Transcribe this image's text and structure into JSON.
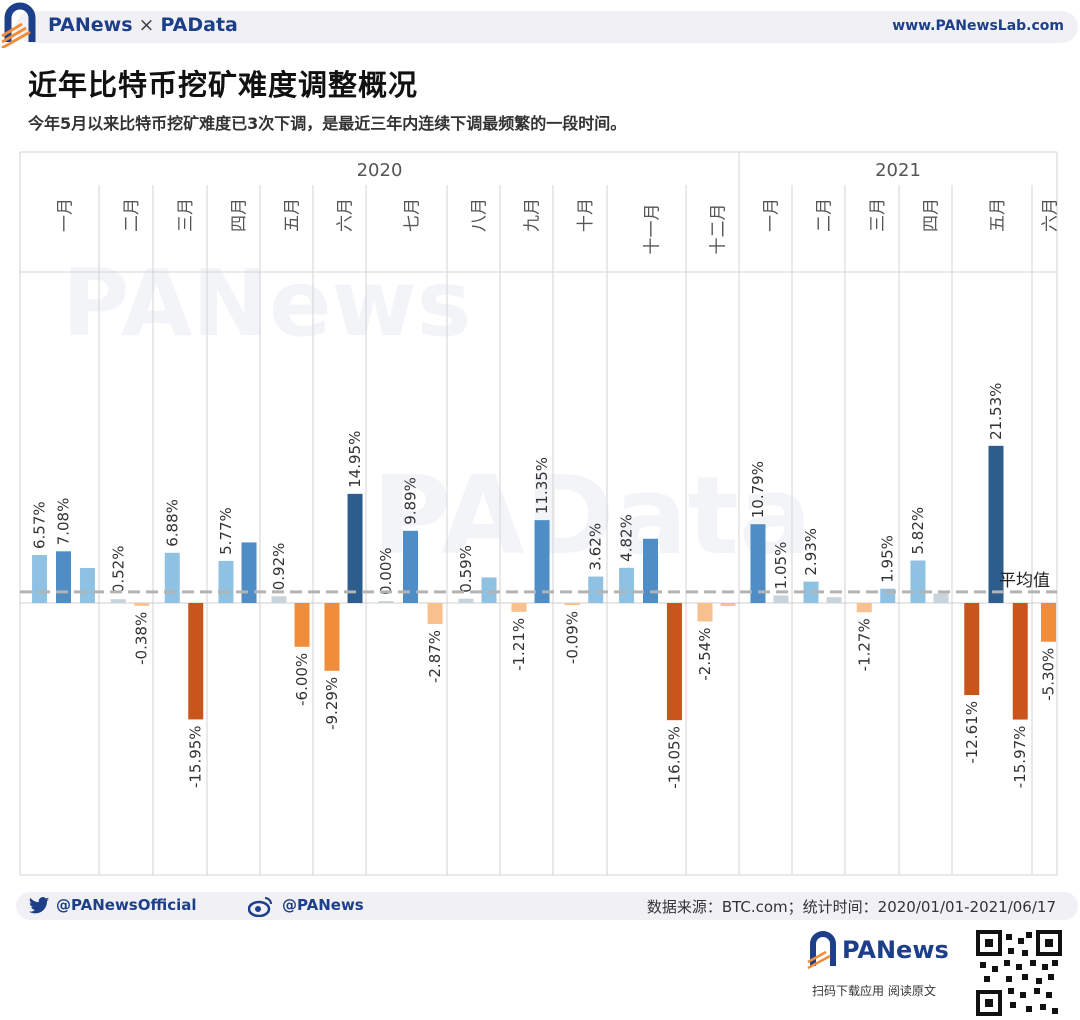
{
  "header": {
    "brand_left": "PANews",
    "brand_sep": "×",
    "brand_right": "PAData",
    "url": "www.PANewsLab.com"
  },
  "title": "近年比特币挖矿难度调整概况",
  "subtitle": "今年5月以来比特币挖矿难度已3次下调，是最近三年内连续下调最频繁的一段时间。",
  "watermarks": [
    "PANews",
    "PAData"
  ],
  "colors": {
    "pos_light": "#8fc1e3",
    "pos_mid": "#4f8dc6",
    "pos_dark": "#2c5d8c",
    "neg_light": "#f7c08c",
    "neg_mid": "#f18d3a",
    "neg_dark": "#c9551d",
    "near_zero": "#c9d3dc",
    "avg_line": "#b3b3b3"
  },
  "chart_data": {
    "type": "bar",
    "average_label": "平均值",
    "average_value": 0.9,
    "years": [
      {
        "label": "2020",
        "months": 12
      },
      {
        "label": "2021",
        "months": 6
      }
    ],
    "months": [
      {
        "label": "一月",
        "values": [
          6.57,
          7.08,
          4.8
        ]
      },
      {
        "label": "二月",
        "values": [
          0.52,
          -0.38
        ]
      },
      {
        "label": "三月",
        "values": [
          6.88,
          -15.95
        ]
      },
      {
        "label": "四月",
        "values": [
          5.77,
          8.3
        ]
      },
      {
        "label": "五月",
        "values": [
          0.92,
          -6.0
        ]
      },
      {
        "label": "六月",
        "values": [
          -9.29,
          14.95
        ]
      },
      {
        "label": "七月",
        "values": [
          0.0,
          9.89,
          -2.87
        ]
      },
      {
        "label": "八月",
        "values": [
          0.59,
          3.5
        ]
      },
      {
        "label": "九月",
        "values": [
          -1.21,
          11.35
        ]
      },
      {
        "label": "十月",
        "values": [
          -0.09,
          3.62
        ]
      },
      {
        "label": "十一月",
        "values": [
          4.82,
          8.8,
          -16.05
        ]
      },
      {
        "label": "十二月",
        "values": [
          -2.54,
          -0.4
        ]
      },
      {
        "label": "一月",
        "values": [
          10.79,
          1.05
        ]
      },
      {
        "label": "二月",
        "values": [
          2.93,
          0.8
        ]
      },
      {
        "label": "三月",
        "values": [
          -1.27,
          1.95
        ]
      },
      {
        "label": "四月",
        "values": [
          5.82,
          1.3
        ]
      },
      {
        "label": "五月",
        "values": [
          -12.61,
          21.53,
          -15.97
        ]
      },
      {
        "label": "六月",
        "values": [
          -5.3
        ]
      }
    ],
    "labels": [
      [
        "6.57%",
        "7.08%",
        ""
      ],
      [
        "0.52%",
        "-0.38%"
      ],
      [
        "6.88%",
        "-15.95%"
      ],
      [
        "5.77%",
        ""
      ],
      [
        "0.92%",
        "-6.00%"
      ],
      [
        "-9.29%",
        "14.95%"
      ],
      [
        "0.00%",
        "9.89%",
        "-2.87%"
      ],
      [
        "0.59%",
        ""
      ],
      [
        "-1.21%",
        "11.35%"
      ],
      [
        "-0.09%",
        "3.62%"
      ],
      [
        "4.82%",
        "",
        "-16.05%"
      ],
      [
        "-2.54%",
        ""
      ],
      [
        "10.79%",
        "1.05%"
      ],
      [
        "2.93%",
        ""
      ],
      [
        "-1.27%",
        "1.95%"
      ],
      [
        "5.82%",
        ""
      ],
      [
        "-12.61%",
        "21.53%",
        "-15.97%"
      ],
      [
        "-5.30%"
      ]
    ]
  },
  "footer": {
    "twitter": "@PANewsOfficial",
    "weibo": "@PANews",
    "source": "数据来源：BTC.com；统计时间：2020/01/01-2021/06/17",
    "bottom_brand": "PANews",
    "bottom_tag": "扫码下载应用  阅读原文"
  }
}
